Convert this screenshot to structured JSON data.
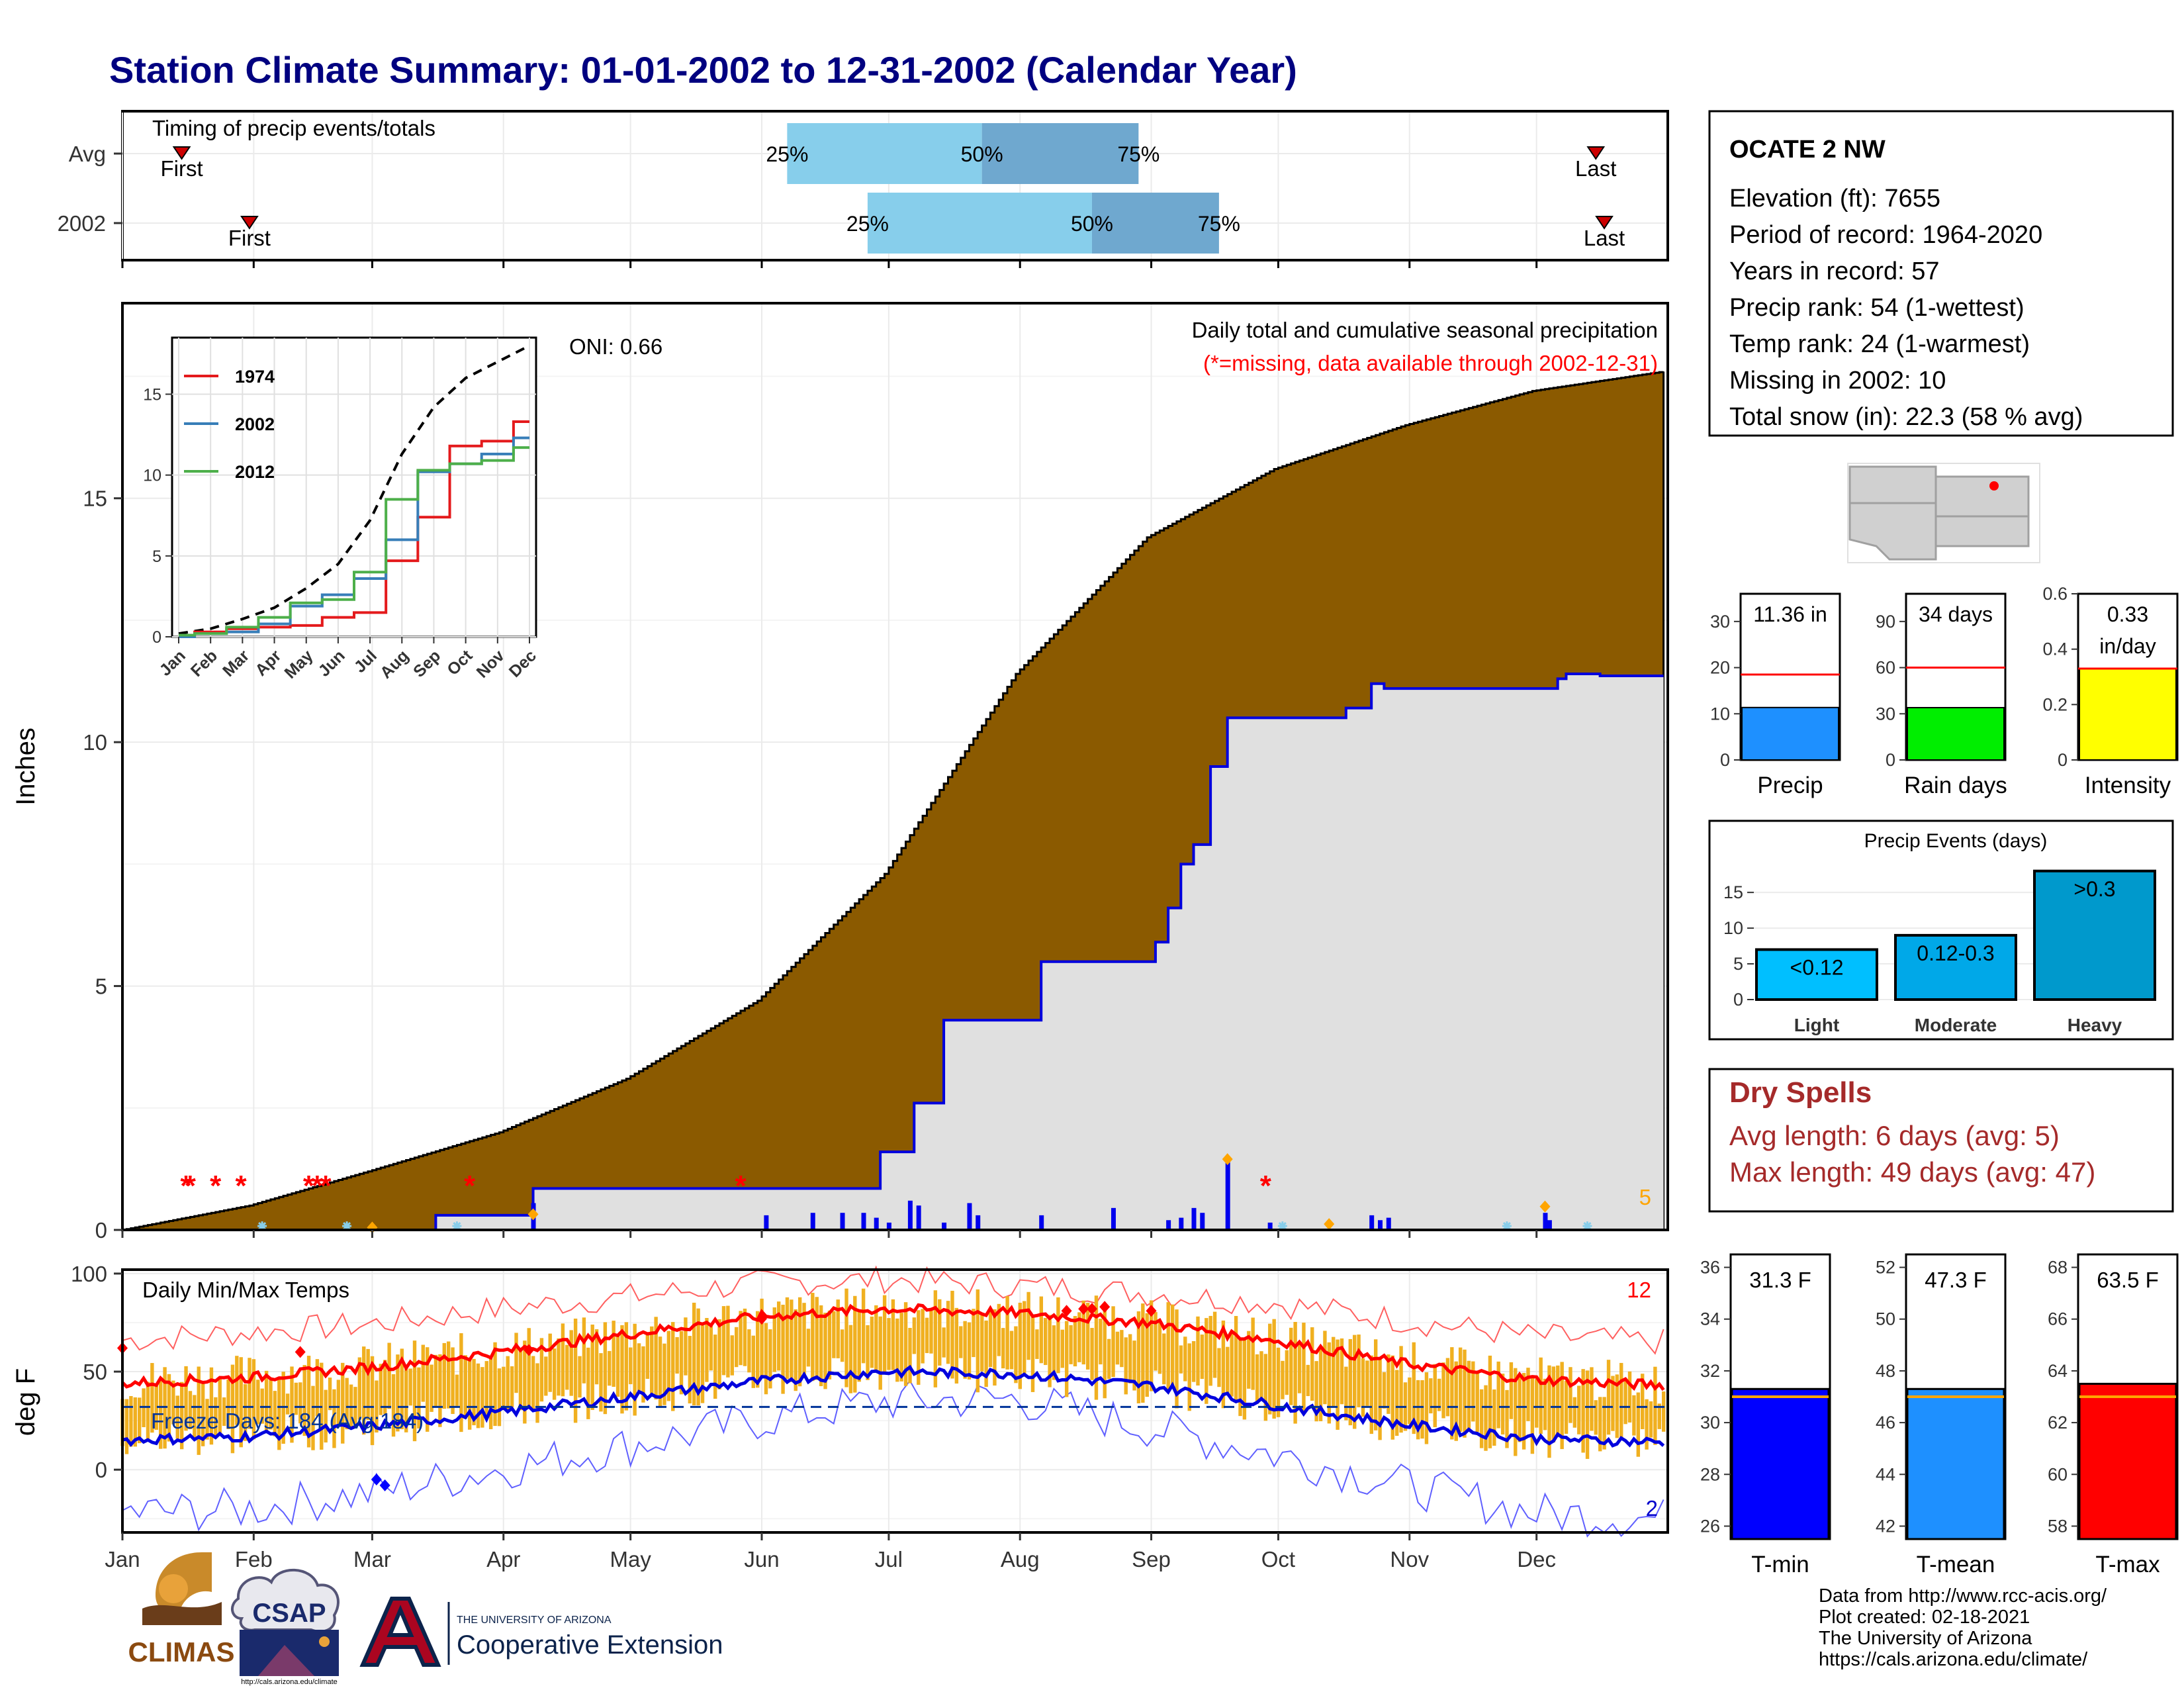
{
  "title": "Station Climate Summary: 01-01-2002 to 12-31-2002 (Calendar Year)",
  "months": [
    "Jan",
    "Feb",
    "Mar",
    "Apr",
    "May",
    "Jun",
    "Jul",
    "Aug",
    "Sep",
    "Oct",
    "Nov",
    "Dec"
  ],
  "timing": {
    "title": "Timing of precip events/totals",
    "rows": [
      {
        "label": "Avg",
        "first_doy": 15,
        "last_doy": 349,
        "p25_doy": 158,
        "p50_doy": 204,
        "p75_doy": 241
      },
      {
        "label": "2002",
        "first_doy": 31,
        "last_doy": 351,
        "p25_doy": 177,
        "p50_doy": 230,
        "p75_doy": 260
      }
    ],
    "first_label": "First",
    "last_label": "Last",
    "p25_label": "25%",
    "p50_label": "50%",
    "p75_label": "75%"
  },
  "main": {
    "ylabel": "Inches",
    "yticks": [
      0,
      5,
      10,
      15
    ],
    "ylim": [
      0,
      19
    ],
    "title_line1": "Daily total and cumulative seasonal precipitation",
    "title_line2": "(*=missing, data available through 2002-12-31)",
    "oni": "ONI: 0.66",
    "corner_count": "5",
    "avg_cumulative": {
      "doy": [
        1,
        31,
        59,
        90,
        120,
        151,
        181,
        212,
        243,
        273,
        304,
        334,
        365
      ],
      "value": [
        0,
        0.5,
        1.2,
        2.0,
        3.1,
        4.7,
        7.3,
        11.4,
        14.2,
        15.6,
        16.5,
        17.2,
        17.6
      ]
    },
    "year_cumulative": {
      "doy": [
        1,
        75,
        98,
        170,
        180,
        188,
        195,
        218,
        245,
        248,
        251,
        254,
        258,
        262,
        290,
        296,
        299,
        340,
        342,
        350,
        365
      ],
      "value": [
        0,
        0.3,
        0.85,
        0.85,
        1.6,
        2.6,
        4.3,
        5.5,
        5.9,
        6.6,
        7.5,
        7.9,
        9.5,
        10.5,
        10.7,
        11.2,
        11.1,
        11.3,
        11.4,
        11.36,
        11.36
      ]
    },
    "daily_bars": [
      {
        "doy": 98,
        "value": 0.55
      },
      {
        "doy": 153,
        "value": 0.3
      },
      {
        "doy": 164,
        "value": 0.35
      },
      {
        "doy": 171,
        "value": 0.35
      },
      {
        "doy": 176,
        "value": 0.35
      },
      {
        "doy": 179,
        "value": 0.25
      },
      {
        "doy": 182,
        "value": 0.15
      },
      {
        "doy": 187,
        "value": 0.6
      },
      {
        "doy": 189,
        "value": 0.5
      },
      {
        "doy": 195,
        "value": 0.15
      },
      {
        "doy": 201,
        "value": 0.55
      },
      {
        "doy": 203,
        "value": 0.3
      },
      {
        "doy": 218,
        "value": 0.3
      },
      {
        "doy": 235,
        "value": 0.45
      },
      {
        "doy": 248,
        "value": 0.2
      },
      {
        "doy": 251,
        "value": 0.25
      },
      {
        "doy": 254,
        "value": 0.45
      },
      {
        "doy": 256,
        "value": 0.35
      },
      {
        "doy": 262,
        "value": 1.4
      },
      {
        "doy": 272,
        "value": 0.15
      },
      {
        "doy": 296,
        "value": 0.3
      },
      {
        "doy": 298,
        "value": 0.2
      },
      {
        "doy": 300,
        "value": 0.25
      },
      {
        "doy": 337,
        "value": 0.35
      },
      {
        "doy": 338,
        "value": 0.2
      }
    ],
    "missing_doy": [
      16,
      17,
      23,
      29,
      45,
      47,
      49,
      83,
      147,
      271
    ],
    "missing_marker": "*"
  },
  "inset": {
    "yticks": [
      0,
      5,
      10,
      15
    ],
    "ylim": [
      0,
      18.5
    ],
    "months": [
      "Jan",
      "Feb",
      "Mar",
      "Apr",
      "May",
      "Jun",
      "Jul",
      "Aug",
      "Sep",
      "Oct",
      "Nov",
      "Dec"
    ],
    "series": [
      {
        "name": "1974",
        "color": "#e41a1c",
        "values": [
          0.1,
          0.3,
          0.5,
          0.6,
          0.7,
          1.2,
          1.5,
          4.7,
          7.4,
          11.8,
          12.1,
          13.3
        ]
      },
      {
        "name": "2002",
        "color": "#377eb8",
        "values": [
          0.0,
          0.2,
          0.3,
          0.8,
          1.9,
          2.6,
          3.6,
          6.0,
          10.2,
          10.7,
          11.3,
          12.3
        ]
      },
      {
        "name": "2012",
        "color": "#4daf4a",
        "values": [
          0.1,
          0.2,
          0.6,
          1.2,
          2.1,
          2.3,
          4.0,
          8.5,
          10.3,
          10.7,
          10.9,
          11.7
        ]
      }
    ],
    "avg_values": [
      0.2,
      0.5,
      1.1,
      1.8,
      3.0,
      4.5,
      7.2,
      11.3,
      14.2,
      16.0,
      17.0,
      18.0
    ]
  },
  "temps": {
    "ylabel": "deg F",
    "label": "Daily Min/Max Temps",
    "yticks": [
      0,
      50,
      100
    ],
    "ylim": [
      -32,
      102
    ],
    "freeze_label": "Freeze Days: 184 (Avg:184)",
    "freeze_line": 32,
    "record_high_count": "12",
    "record_low_count": "2",
    "normal_max": {
      "doy": [
        1,
        31,
        59,
        90,
        120,
        151,
        181,
        212,
        243,
        273,
        304,
        334,
        365
      ],
      "value": [
        44,
        47,
        52,
        60,
        69,
        78,
        82,
        80,
        75,
        66,
        54,
        46,
        43
      ]
    },
    "normal_min": {
      "doy": [
        1,
        31,
        59,
        90,
        120,
        151,
        181,
        212,
        243,
        273,
        304,
        334,
        365
      ],
      "value": [
        15,
        17,
        22,
        29,
        37,
        45,
        50,
        49,
        43,
        33,
        23,
        16,
        14
      ]
    },
    "record_max": {
      "doy": [
        1,
        31,
        59,
        90,
        120,
        151,
        181,
        212,
        243,
        273,
        304,
        334,
        365
      ],
      "value": [
        66,
        70,
        74,
        82,
        88,
        95,
        97,
        94,
        90,
        85,
        76,
        68,
        65
      ]
    },
    "record_min": {
      "doy": [
        1,
        31,
        59,
        90,
        120,
        151,
        181,
        212,
        243,
        273,
        304,
        334,
        365
      ],
      "value": [
        -22,
        -20,
        -12,
        0,
        12,
        25,
        35,
        36,
        22,
        8,
        -8,
        -22,
        -25
      ]
    }
  },
  "info": {
    "station": "OCATE 2 NW",
    "lines": [
      "Elevation (ft): 7655",
      "Period of record: 1964-2020",
      "Years in record: 57",
      "Precip rank: 54 (1-wettest)",
      "Temp rank: 24 (1-warmest)",
      "Missing in 2002: 10",
      "Total snow (in): 22.3 (58 % avg)"
    ]
  },
  "summary_bars": [
    {
      "name": "Precip",
      "label_line1": "11.36 in",
      "label_line2": "",
      "value": 11.36,
      "avg": 18.5,
      "ylim": [
        0,
        36
      ],
      "yticks": [
        0,
        10,
        20,
        30
      ],
      "color": "#1e90ff"
    },
    {
      "name": "Rain days",
      "label_line1": "34 days",
      "label_line2": "",
      "value": 34,
      "avg": 60,
      "ylim": [
        0,
        108
      ],
      "yticks": [
        0,
        30,
        60,
        90
      ],
      "color": "#00ee00"
    },
    {
      "name": "Intensity",
      "label_line1": "0.33",
      "label_line2": "in/day",
      "value": 0.33,
      "avg": 0.33,
      "ylim": [
        0,
        0.6
      ],
      "yticks": [
        0.0,
        0.2,
        0.4,
        0.6
      ],
      "color": "#ffff00"
    }
  ],
  "events": {
    "title": "Precip Events (days)",
    "ylim": [
      0,
      19
    ],
    "yticks": [
      0,
      5,
      10,
      15
    ],
    "categories": [
      "Light",
      "Moderate",
      "Heavy"
    ],
    "labels": [
      "<0.12",
      "0.12-0.3",
      ">0.3"
    ],
    "values": [
      7,
      9,
      18
    ],
    "colors": [
      "#00bfff",
      "#00a8e8",
      "#0099cc"
    ]
  },
  "dry_spells": {
    "title": "Dry Spells",
    "avg_line": "Avg length: 6 days (avg: 5)",
    "max_line": "Max length: 49 days (avg: 47)"
  },
  "temp_bars": [
    {
      "name": "T-min",
      "label": "31.3 F",
      "value": 31.3,
      "avg": 31.0,
      "ylim": [
        25.5,
        36.5
      ],
      "yticks": [
        26,
        28,
        30,
        32,
        34,
        36
      ],
      "color": "#0000ff"
    },
    {
      "name": "T-mean",
      "label": "47.3 F",
      "value": 47.3,
      "avg": 47.0,
      "ylim": [
        41.5,
        52.5
      ],
      "yticks": [
        42,
        44,
        46,
        48,
        50,
        52
      ],
      "color": "#1e90ff"
    },
    {
      "name": "T-max",
      "label": "63.5 F",
      "value": 63.5,
      "avg": 63.0,
      "ylim": [
        57.5,
        68.5
      ],
      "yticks": [
        58,
        60,
        62,
        64,
        66,
        68
      ],
      "color": "#ff0000"
    }
  ],
  "credits": [
    "Data from http://www.rcc-acis.org/",
    "Plot created: 02-18-2021",
    "The University of Arizona",
    "https://cals.arizona.edu/climate/"
  ],
  "logos": {
    "climas": "CLIMAS",
    "csap": "CSAP",
    "csap_url": "http://cals.arizona.edu/climate",
    "ua_small": "THE UNIVERSITY OF ARIZONA",
    "ua_big": "Cooperative Extension"
  },
  "colors": {
    "avg_fill": "#8b5a00",
    "year_fill": "#e0e0e0",
    "year_line": "#0000dd",
    "bars": "#0000ee",
    "temp_bar": "#f0b020",
    "tmax_line": "#ff0000",
    "tmin_line": "#0000dd",
    "pct_light": "#87ceeb",
    "pct_dark": "#6fa8cf"
  }
}
